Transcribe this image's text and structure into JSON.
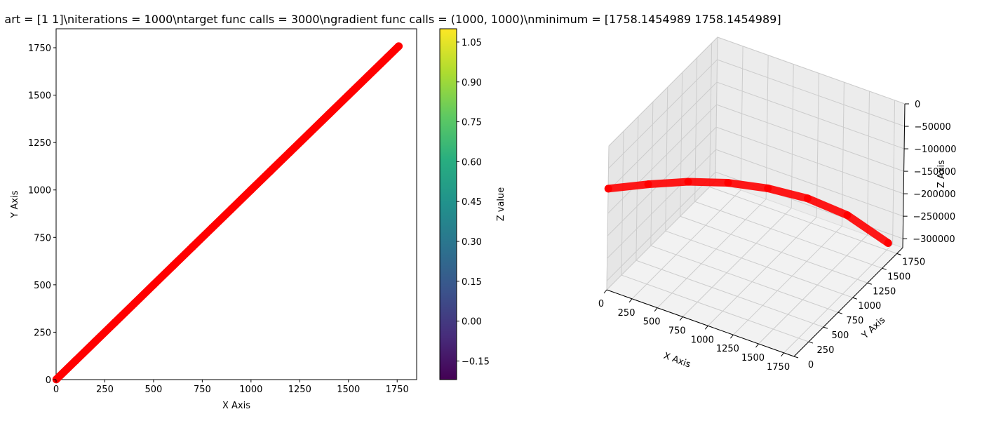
{
  "figure": {
    "title": "art = [1 1]\\niterations = 1000\\ntarget func calls = 3000\\ngradient func calls = (1000, 1000)\\nminimum = [1758.1454989 1758.1454989]"
  },
  "colors": {
    "points": "#ff0000",
    "axes": "#000000",
    "pane": "#f2f2f2",
    "grid3d": "#cccccc"
  },
  "chart_data": [
    {
      "type": "scatter",
      "xlabel": "X Axis",
      "ylabel": "Y Axis",
      "xlim": [
        0,
        1850
      ],
      "ylim": [
        0,
        1850
      ],
      "xticks": [
        0,
        250,
        500,
        750,
        1000,
        1250,
        1500,
        1750
      ],
      "yticks": [
        0,
        250,
        500,
        750,
        1000,
        1250,
        1500,
        1750
      ],
      "x": [
        1,
        100,
        200,
        300,
        400,
        500,
        600,
        700,
        800,
        900,
        1000,
        1100,
        1200,
        1300,
        1400,
        1500,
        1600,
        1700,
        1758.1
      ],
      "y": [
        1,
        100,
        200,
        300,
        400,
        500,
        600,
        700,
        800,
        900,
        1000,
        1100,
        1200,
        1300,
        1400,
        1500,
        1600,
        1700,
        1758.1
      ],
      "grid": false,
      "colorbar": {
        "label": "Z value",
        "cmap": "viridis",
        "range": [
          -0.22,
          1.1
        ],
        "ticks": [
          "−0.15",
          "0.00",
          "0.15",
          "0.30",
          "0.45",
          "0.60",
          "0.75",
          "0.90",
          "1.05"
        ],
        "tick_values": [
          -0.15,
          0.0,
          0.15,
          0.3,
          0.45,
          0.6,
          0.75,
          0.9,
          1.05
        ]
      }
    },
    {
      "type": "scatter",
      "xlabel": "X Axis",
      "ylabel": "Y Axis",
      "zlabel": "Z Axis",
      "xticks": [
        "0",
        "250",
        "500",
        "750",
        "1000",
        "1250",
        "1500",
        "1750"
      ],
      "yticks": [
        "0",
        "250",
        "500",
        "750",
        "1000",
        "1250",
        "1500",
        "1750"
      ],
      "zticks": [
        "0",
        "−50000",
        "−100000",
        "−150000",
        "−200000",
        "−250000",
        "−300000"
      ],
      "x": [
        1,
        250,
        500,
        750,
        1000,
        1250,
        1500,
        1758.1
      ],
      "y": [
        1,
        250,
        500,
        750,
        1000,
        1250,
        1500,
        1758.1
      ],
      "z": [
        -95000,
        -98000,
        -105000,
        -120000,
        -145000,
        -180000,
        -230000,
        -305000
      ],
      "grid": true
    }
  ]
}
